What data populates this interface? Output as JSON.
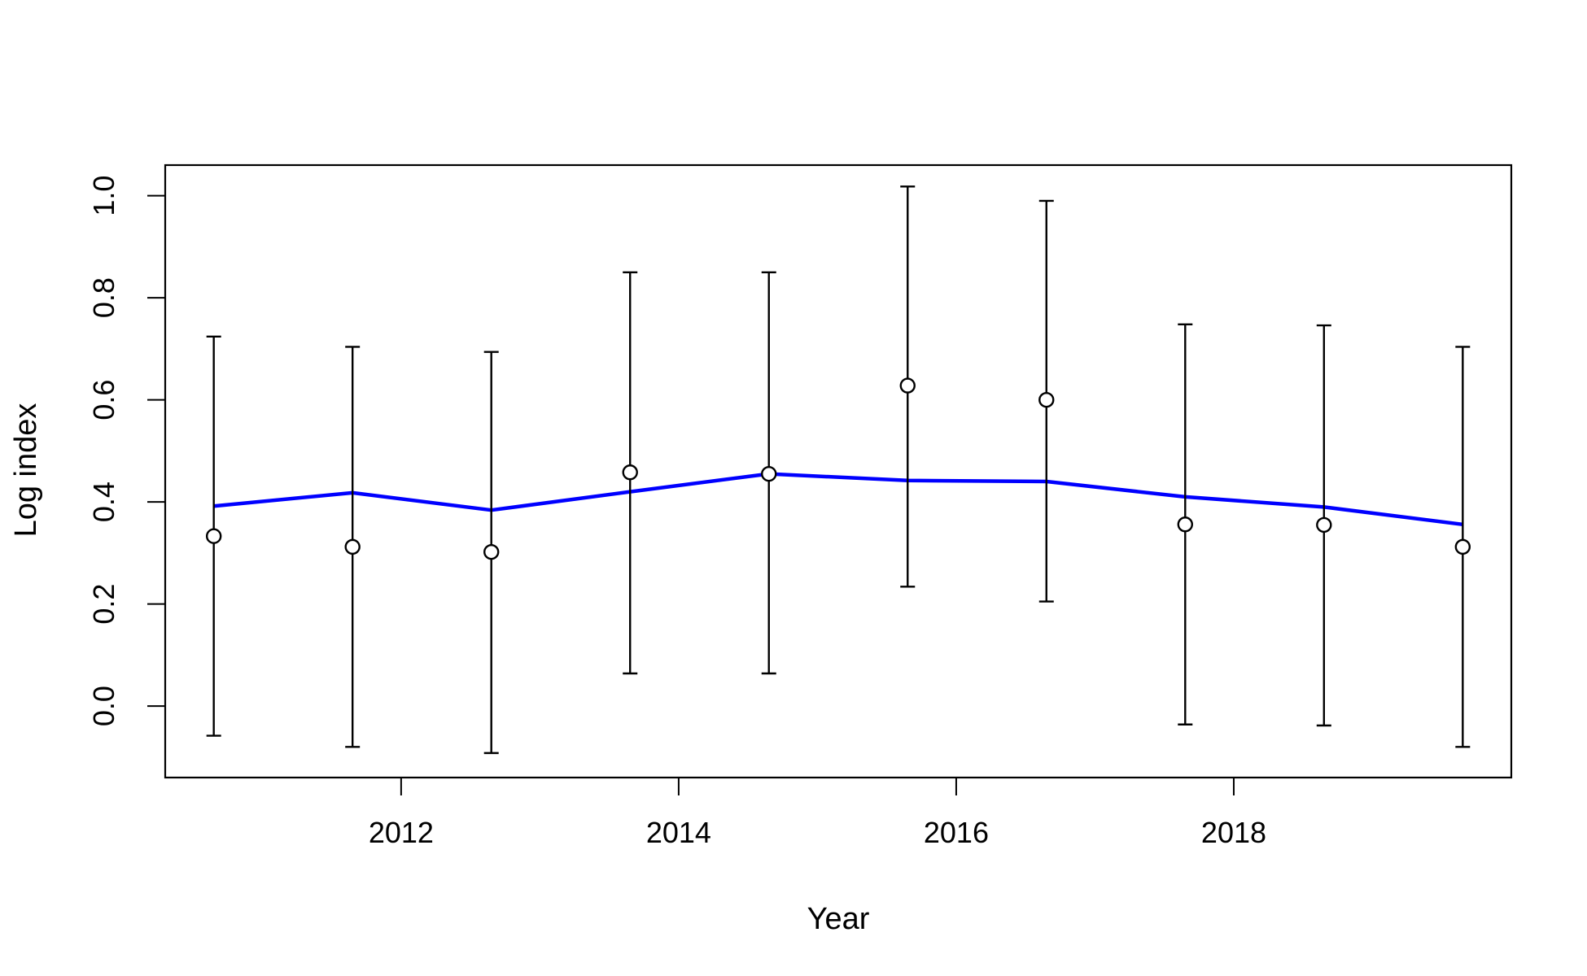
{
  "chart_data": {
    "type": "line",
    "title": "",
    "xlabel": "Year",
    "ylabel": "Log index",
    "x_ticks": [
      2012,
      2014,
      2016,
      2018
    ],
    "y_ticks": [
      0.0,
      0.2,
      0.4,
      0.6,
      0.8,
      1.0
    ],
    "xlim": [
      2010.3,
      2020.0
    ],
    "ylim": [
      -0.14,
      1.06
    ],
    "grid": false,
    "legend": "none",
    "colors": {
      "observed": "#000000",
      "fitted": "#0000ff"
    },
    "series": [
      {
        "type": "scatter",
        "x": [
          2010.65,
          2011.65,
          2012.65,
          2013.65,
          2014.65,
          2015.65,
          2016.65,
          2017.65,
          2018.65,
          2019.65
        ],
        "values": [
          0.333,
          0.312,
          0.302,
          0.458,
          0.455,
          0.628,
          0.6,
          0.356,
          0.355,
          0.312
        ],
        "lower": [
          -0.058,
          -0.08,
          -0.092,
          0.064,
          0.064,
          0.234,
          0.205,
          -0.036,
          -0.038,
          -0.08
        ],
        "upper": [
          0.724,
          0.704,
          0.694,
          0.85,
          0.85,
          1.018,
          0.99,
          0.748,
          0.746,
          0.704
        ]
      },
      {
        "type": "line",
        "x": [
          2010.65,
          2011.65,
          2012.65,
          2013.65,
          2014.65,
          2015.65,
          2016.65,
          2017.65,
          2018.65,
          2019.65
        ],
        "values": [
          0.392,
          0.418,
          0.384,
          0.42,
          0.455,
          0.442,
          0.44,
          0.41,
          0.39,
          0.356
        ]
      }
    ]
  }
}
